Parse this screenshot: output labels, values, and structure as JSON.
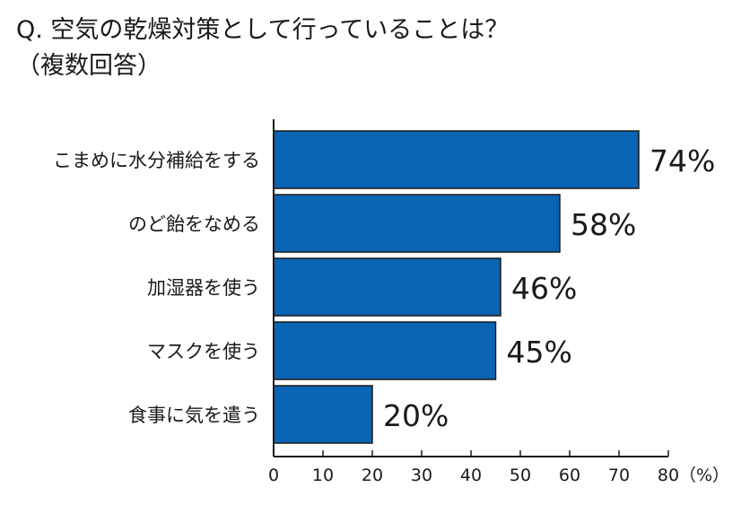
{
  "title_line1": "Q. 空気の乾燥対策として行っていることは？",
  "title_line2": "（複数回答）",
  "chart_data": {
    "type": "bar",
    "orientation": "horizontal",
    "categories": [
      "こまめに水分補給をする",
      "のど飴をなめる",
      "加湿器を使う",
      "マスクを使う",
      "食事に気を遣う"
    ],
    "values": [
      74,
      58,
      46,
      45,
      20
    ],
    "value_labels": [
      "74%",
      "58%",
      "46%",
      "45%",
      "20%"
    ],
    "xlim": [
      0,
      80
    ],
    "xticks": [
      0,
      10,
      20,
      30,
      40,
      50,
      60,
      70,
      80
    ],
    "xunit": "（%）",
    "bar_color": "#0a64b4",
    "grid": false
  }
}
